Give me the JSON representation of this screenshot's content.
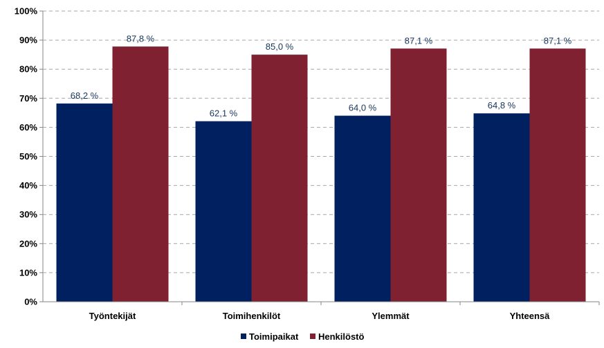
{
  "chart_data": {
    "type": "bar",
    "categories": [
      "Työntekijät",
      "Toimihenkilöt",
      "Ylemmät",
      "Yhteensä"
    ],
    "series": [
      {
        "name": "Toimipaikat",
        "values": [
          68.2,
          62.1,
          64.0,
          64.8
        ],
        "labels": [
          "68,2 %",
          "62,1 %",
          "64,0 %",
          "64,8 %"
        ],
        "color": "#002060"
      },
      {
        "name": "Henkilöstö",
        "values": [
          87.8,
          85.0,
          87.1,
          87.1
        ],
        "labels": [
          "87,8 %",
          "85,0 %",
          "87,1 %",
          "87,1 %"
        ],
        "color": "#7f2130"
      }
    ],
    "ylim": [
      0,
      100
    ],
    "yticks": [
      "0%",
      "10%",
      "20%",
      "30%",
      "40%",
      "50%",
      "60%",
      "70%",
      "80%",
      "90%",
      "100%"
    ],
    "grid": true,
    "legend": "bottom-center"
  }
}
